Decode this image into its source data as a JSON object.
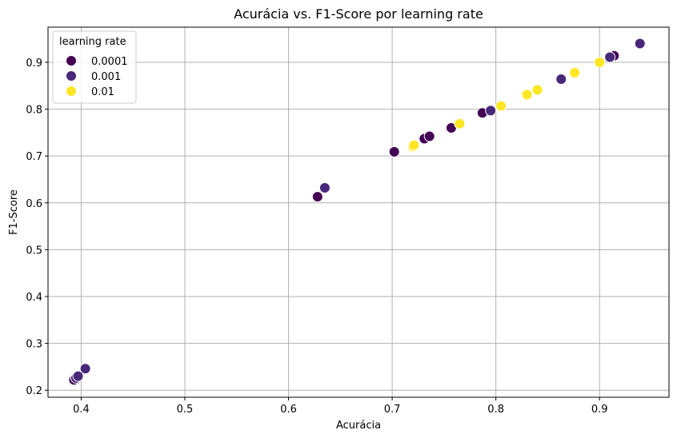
{
  "chart_data": {
    "type": "scatter",
    "title": "Acurácia vs. F1-Score por learning rate",
    "xlabel": "Acurácia",
    "ylabel": "F1-Score",
    "xlim": [
      0.368,
      0.967
    ],
    "ylim": [
      0.185,
      0.975
    ],
    "xticks": [
      0.4,
      0.5,
      0.6,
      0.7,
      0.8,
      0.9
    ],
    "yticks": [
      0.2,
      0.3,
      0.4,
      0.5,
      0.6,
      0.7,
      0.8,
      0.9
    ],
    "xtick_labels": [
      "0.4",
      "0.5",
      "0.6",
      "0.7",
      "0.8",
      "0.9"
    ],
    "ytick_labels": [
      "0.2",
      "0.3",
      "0.4",
      "0.5",
      "0.6",
      "0.7",
      "0.8",
      "0.9"
    ],
    "grid": true,
    "legend": {
      "title": "learning rate",
      "placement": "top-left"
    },
    "series": [
      {
        "name": "0.0001",
        "color": "#440154",
        "points": [
          {
            "x": 0.393,
            "y": 0.222
          },
          {
            "x": 0.628,
            "y": 0.613
          },
          {
            "x": 0.702,
            "y": 0.709
          },
          {
            "x": 0.731,
            "y": 0.737
          },
          {
            "x": 0.736,
            "y": 0.742
          },
          {
            "x": 0.757,
            "y": 0.76
          },
          {
            "x": 0.787,
            "y": 0.792
          },
          {
            "x": 0.914,
            "y": 0.914
          }
        ]
      },
      {
        "name": "0.001",
        "color": "#482878",
        "points": [
          {
            "x": 0.395,
            "y": 0.226
          },
          {
            "x": 0.397,
            "y": 0.23
          },
          {
            "x": 0.404,
            "y": 0.246
          },
          {
            "x": 0.635,
            "y": 0.632
          },
          {
            "x": 0.795,
            "y": 0.797
          },
          {
            "x": 0.863,
            "y": 0.864
          },
          {
            "x": 0.91,
            "y": 0.911
          },
          {
            "x": 0.939,
            "y": 0.94
          }
        ]
      },
      {
        "name": "0.01",
        "color": "#fde725",
        "points": [
          {
            "x": 0.72,
            "y": 0.72
          },
          {
            "x": 0.721,
            "y": 0.723
          },
          {
            "x": 0.765,
            "y": 0.769
          },
          {
            "x": 0.805,
            "y": 0.807
          },
          {
            "x": 0.83,
            "y": 0.831
          },
          {
            "x": 0.84,
            "y": 0.841
          },
          {
            "x": 0.876,
            "y": 0.878
          },
          {
            "x": 0.9,
            "y": 0.9
          }
        ]
      }
    ]
  }
}
